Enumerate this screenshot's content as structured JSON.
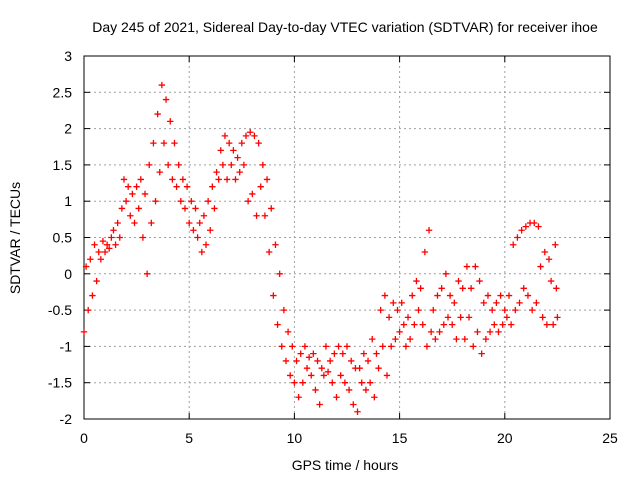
{
  "chart_data": {
    "type": "scatter",
    "title": "Day 245 of 2021, Sidereal Day-to-day VTEC variation (SDTVAR) for receiver ihoe",
    "xlabel": "GPS time / hours",
    "ylabel": "SDTVAR / TECUs",
    "xlim": [
      0,
      25
    ],
    "ylim": [
      -2,
      3
    ],
    "xticks": [
      0,
      5,
      10,
      15,
      20,
      25
    ],
    "yticks": [
      -2,
      -1.5,
      -1,
      -0.5,
      0,
      0.5,
      1,
      1.5,
      2,
      2.5,
      3
    ],
    "xtick_labels": [
      "0",
      "5",
      "10",
      "15",
      "20",
      "25"
    ],
    "ytick_labels": [
      "-2",
      "-1.5",
      "-1",
      "-0.5",
      "0",
      "0.5",
      "1",
      "1.5",
      "2",
      "2.5",
      "3"
    ],
    "grid": true,
    "marker": "+",
    "color": "#ff0000",
    "series": [
      {
        "name": "SDTVAR",
        "points": [
          [
            0.0,
            -0.8
          ],
          [
            0.1,
            0.1
          ],
          [
            0.2,
            -0.5
          ],
          [
            0.3,
            0.2
          ],
          [
            0.4,
            -0.3
          ],
          [
            0.5,
            0.4
          ],
          [
            0.6,
            -0.1
          ],
          [
            0.7,
            0.3
          ],
          [
            0.8,
            0.2
          ],
          [
            0.9,
            0.45
          ],
          [
            1.0,
            0.3
          ],
          [
            1.1,
            0.4
          ],
          [
            1.2,
            0.35
          ],
          [
            1.3,
            0.5
          ],
          [
            1.4,
            0.6
          ],
          [
            1.5,
            0.4
          ],
          [
            1.6,
            0.7
          ],
          [
            1.7,
            0.5
          ],
          [
            1.8,
            0.9
          ],
          [
            1.9,
            1.3
          ],
          [
            2.0,
            1.0
          ],
          [
            2.1,
            1.2
          ],
          [
            2.2,
            0.8
          ],
          [
            2.3,
            1.1
          ],
          [
            2.4,
            0.7
          ],
          [
            2.5,
            1.2
          ],
          [
            2.6,
            0.9
          ],
          [
            2.7,
            1.3
          ],
          [
            2.8,
            0.5
          ],
          [
            2.9,
            1.1
          ],
          [
            3.0,
            0.0
          ],
          [
            3.1,
            1.5
          ],
          [
            3.2,
            0.7
          ],
          [
            3.3,
            1.8
          ],
          [
            3.4,
            1.0
          ],
          [
            3.5,
            2.2
          ],
          [
            3.6,
            1.4
          ],
          [
            3.7,
            2.6
          ],
          [
            3.8,
            1.8
          ],
          [
            3.9,
            2.4
          ],
          [
            4.0,
            1.5
          ],
          [
            4.1,
            2.1
          ],
          [
            4.2,
            1.3
          ],
          [
            4.3,
            1.8
          ],
          [
            4.4,
            1.2
          ],
          [
            4.5,
            1.5
          ],
          [
            4.6,
            1.0
          ],
          [
            4.7,
            1.3
          ],
          [
            4.8,
            0.9
          ],
          [
            4.9,
            1.2
          ],
          [
            5.0,
            0.7
          ],
          [
            5.1,
            1.0
          ],
          [
            5.2,
            0.6
          ],
          [
            5.3,
            0.9
          ],
          [
            5.4,
            0.5
          ],
          [
            5.5,
            0.7
          ],
          [
            5.6,
            0.3
          ],
          [
            5.7,
            0.8
          ],
          [
            5.8,
            0.4
          ],
          [
            5.9,
            1.0
          ],
          [
            6.0,
            0.6
          ],
          [
            6.1,
            1.2
          ],
          [
            6.2,
            0.9
          ],
          [
            6.3,
            1.4
          ],
          [
            6.4,
            1.3
          ],
          [
            6.5,
            1.7
          ],
          [
            6.6,
            1.5
          ],
          [
            6.7,
            1.9
          ],
          [
            6.8,
            1.3
          ],
          [
            6.9,
            1.8
          ],
          [
            7.0,
            1.5
          ],
          [
            7.1,
            1.7
          ],
          [
            7.2,
            1.3
          ],
          [
            7.3,
            1.6
          ],
          [
            7.4,
            1.4
          ],
          [
            7.5,
            1.8
          ],
          [
            7.6,
            1.5
          ],
          [
            7.7,
            1.9
          ],
          [
            7.8,
            1.0
          ],
          [
            7.9,
            1.95
          ],
          [
            8.0,
            1.1
          ],
          [
            8.1,
            1.9
          ],
          [
            8.2,
            0.8
          ],
          [
            8.3,
            1.8
          ],
          [
            8.4,
            1.2
          ],
          [
            8.5,
            1.5
          ],
          [
            8.6,
            0.8
          ],
          [
            8.7,
            1.3
          ],
          [
            8.8,
            0.3
          ],
          [
            8.9,
            0.9
          ],
          [
            9.0,
            -0.3
          ],
          [
            9.1,
            0.4
          ],
          [
            9.2,
            -0.7
          ],
          [
            9.3,
            0.0
          ],
          [
            9.4,
            -1.0
          ],
          [
            9.5,
            -0.5
          ],
          [
            9.6,
            -1.2
          ],
          [
            9.7,
            -0.8
          ],
          [
            9.8,
            -1.4
          ],
          [
            9.9,
            -1.0
          ],
          [
            10.0,
            -1.5
          ],
          [
            10.1,
            -1.2
          ],
          [
            10.2,
            -1.7
          ],
          [
            10.3,
            -1.1
          ],
          [
            10.4,
            -1.5
          ],
          [
            10.5,
            -1.0
          ],
          [
            10.6,
            -1.3
          ],
          [
            10.7,
            -1.15
          ],
          [
            10.8,
            -1.4
          ],
          [
            10.9,
            -1.1
          ],
          [
            11.0,
            -1.6
          ],
          [
            11.1,
            -1.2
          ],
          [
            11.2,
            -1.8
          ],
          [
            11.3,
            -1.3
          ],
          [
            11.4,
            -1.4
          ],
          [
            11.5,
            -1.0
          ],
          [
            11.6,
            -1.35
          ],
          [
            11.7,
            -1.2
          ],
          [
            11.8,
            -1.5
          ],
          [
            11.9,
            -1.1
          ],
          [
            12.0,
            -1.7
          ],
          [
            12.1,
            -1.0
          ],
          [
            12.2,
            -1.4
          ],
          [
            12.3,
            -1.1
          ],
          [
            12.4,
            -1.5
          ],
          [
            12.5,
            -1.0
          ],
          [
            12.6,
            -1.6
          ],
          [
            12.7,
            -1.2
          ],
          [
            12.8,
            -1.8
          ],
          [
            12.9,
            -1.3
          ],
          [
            13.0,
            -1.9
          ],
          [
            13.1,
            -1.3
          ],
          [
            13.2,
            -1.5
          ],
          [
            13.3,
            -1.1
          ],
          [
            13.4,
            -1.6
          ],
          [
            13.5,
            -1.2
          ],
          [
            13.6,
            -1.5
          ],
          [
            13.7,
            -0.9
          ],
          [
            13.8,
            -1.7
          ],
          [
            13.9,
            -1.1
          ],
          [
            14.0,
            -1.3
          ],
          [
            14.1,
            -0.5
          ],
          [
            14.2,
            -1.0
          ],
          [
            14.3,
            -0.3
          ],
          [
            14.4,
            -1.4
          ],
          [
            14.5,
            -0.6
          ],
          [
            14.6,
            -1.0
          ],
          [
            14.7,
            -0.4
          ],
          [
            14.8,
            -0.9
          ],
          [
            14.9,
            -0.5
          ],
          [
            15.0,
            -0.8
          ],
          [
            15.1,
            -0.4
          ],
          [
            15.2,
            -0.7
          ],
          [
            15.3,
            -1.0
          ],
          [
            15.4,
            -0.6
          ],
          [
            15.5,
            -0.9
          ],
          [
            15.6,
            -0.3
          ],
          [
            15.7,
            -0.7
          ],
          [
            15.8,
            -0.1
          ],
          [
            15.9,
            -0.5
          ],
          [
            16.0,
            -0.2
          ],
          [
            16.1,
            -0.7
          ],
          [
            16.2,
            0.3
          ],
          [
            16.3,
            -1.0
          ],
          [
            16.4,
            0.6
          ],
          [
            16.5,
            -0.8
          ],
          [
            16.6,
            -0.5
          ],
          [
            16.7,
            -0.9
          ],
          [
            16.8,
            -0.3
          ],
          [
            16.9,
            -0.8
          ],
          [
            17.0,
            -0.2
          ],
          [
            17.1,
            -0.7
          ],
          [
            17.2,
            0.0
          ],
          [
            17.3,
            -0.6
          ],
          [
            17.4,
            -0.3
          ],
          [
            17.5,
            -0.7
          ],
          [
            17.6,
            -0.4
          ],
          [
            17.7,
            -0.9
          ],
          [
            17.8,
            -0.1
          ],
          [
            17.9,
            -0.6
          ],
          [
            18.0,
            -0.2
          ],
          [
            18.1,
            -0.9
          ],
          [
            18.2,
            0.1
          ],
          [
            18.3,
            -0.6
          ],
          [
            18.4,
            -0.2
          ],
          [
            18.5,
            -1.0
          ],
          [
            18.6,
            0.1
          ],
          [
            18.7,
            -0.8
          ],
          [
            18.8,
            -0.1
          ],
          [
            18.9,
            -1.1
          ],
          [
            19.0,
            -0.4
          ],
          [
            19.1,
            -0.9
          ],
          [
            19.2,
            -0.3
          ],
          [
            19.3,
            -0.8
          ],
          [
            19.4,
            -0.5
          ],
          [
            19.5,
            -0.7
          ],
          [
            19.6,
            -0.4
          ],
          [
            19.7,
            -0.8
          ],
          [
            19.8,
            -0.3
          ],
          [
            19.9,
            -0.7
          ],
          [
            20.0,
            -0.5
          ],
          [
            20.1,
            -0.6
          ],
          [
            20.2,
            -0.3
          ],
          [
            20.3,
            -0.7
          ],
          [
            20.4,
            0.4
          ],
          [
            20.5,
            -0.5
          ],
          [
            20.6,
            0.5
          ],
          [
            20.7,
            -0.4
          ],
          [
            20.8,
            0.6
          ],
          [
            20.9,
            -0.2
          ],
          [
            21.0,
            0.65
          ],
          [
            21.1,
            -0.3
          ],
          [
            21.2,
            0.7
          ],
          [
            21.3,
            -0.5
          ],
          [
            21.4,
            0.7
          ],
          [
            21.5,
            -0.4
          ],
          [
            21.6,
            0.65
          ],
          [
            21.7,
            0.1
          ],
          [
            21.8,
            -0.6
          ],
          [
            21.9,
            0.3
          ],
          [
            22.0,
            -0.7
          ],
          [
            22.1,
            0.2
          ],
          [
            22.2,
            -0.1
          ],
          [
            22.3,
            -0.7
          ],
          [
            22.4,
            0.4
          ],
          [
            22.45,
            -0.2
          ],
          [
            22.5,
            -0.6
          ]
        ]
      }
    ]
  }
}
